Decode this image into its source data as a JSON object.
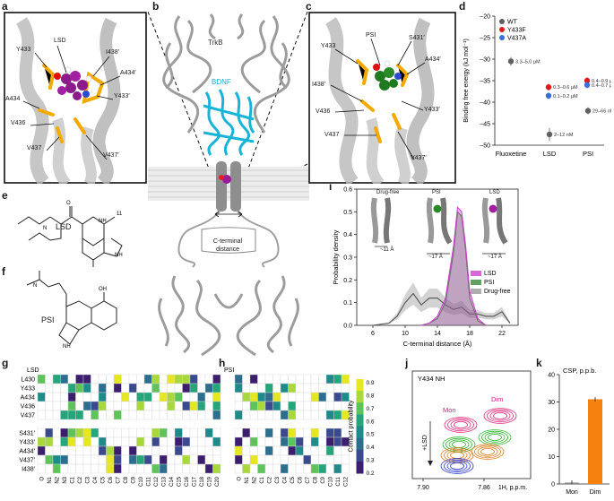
{
  "panels": {
    "a": {
      "label": "a",
      "residues": [
        "LSD",
        "Y433",
        "I438′",
        "A434′",
        "A434",
        "Y433′",
        "V436",
        "V437",
        "V437′"
      ]
    },
    "b": {
      "label": "b",
      "trkb": "TrkB",
      "bdnf": "BDNF",
      "distance_label": "C-terminal\ndistance"
    },
    "c": {
      "label": "c",
      "residues": [
        "PSI",
        "S431′",
        "Y433",
        "A434′",
        "I438′",
        "V436",
        "Y433′",
        "V437",
        "V437′"
      ]
    },
    "d": {
      "label": "d",
      "ylabel": "Binding free energy (kJ mol⁻¹)",
      "legend": [
        {
          "name": "WT",
          "color": "#606060"
        },
        {
          "name": "Y433F",
          "color": "#e31a1c"
        },
        {
          "name": "V437A",
          "color": "#3b6fd8"
        }
      ],
      "chart_data": {
        "type": "scatter",
        "categories": [
          "Fluoxetine",
          "LSD",
          "PSI"
        ],
        "ylim": [
          -50,
          -20
        ],
        "yticks": [
          -20,
          -25,
          -30,
          -35,
          -40,
          -45,
          -50
        ],
        "points": [
          {
            "category": "Fluoxetine",
            "series": "WT",
            "y": -30.5,
            "err": 1.0,
            "label": "3.3–5.0 μM"
          },
          {
            "category": "LSD",
            "series": "WT",
            "y": -47.5,
            "err": 1.5,
            "label": "2–12 nM"
          },
          {
            "category": "LSD",
            "series": "Y433F",
            "y": -36.5,
            "err": 0.8,
            "label": "0.3–0.6 μM"
          },
          {
            "category": "LSD",
            "series": "V437A",
            "y": -38.5,
            "err": 0.8,
            "label": "0.1–0.2 μM"
          },
          {
            "category": "PSI",
            "series": "WT",
            "y": -42.0,
            "err": 0.8,
            "label": "29–66 nM"
          },
          {
            "category": "PSI",
            "series": "Y433F",
            "y": -35.0,
            "err": 0.8,
            "label": "0.4–0.9 μM"
          },
          {
            "category": "PSI",
            "series": "V437A",
            "y": -36.0,
            "err": 0.8,
            "label": "0.4–0.7 μM"
          }
        ]
      }
    },
    "e": {
      "label": "e",
      "name": "LSD"
    },
    "f": {
      "label": "f",
      "name": "PSI"
    },
    "g": {
      "label": "g",
      "title": "LSD",
      "rows_top": [
        "L430",
        "Y433",
        "A434",
        "V436",
        "V437"
      ],
      "rows_bottom": [
        "S431′",
        "Y433′",
        "A434′",
        "V437′",
        "I438′"
      ],
      "cols": [
        "O",
        "N1",
        "N2",
        "N3",
        "C1",
        "C2",
        "C3",
        "C4",
        "C5",
        "C6",
        "C7",
        "C8",
        "C9",
        "C10",
        "C11",
        "C12",
        "C13",
        "C14",
        "C15",
        "C16",
        "C17",
        "C18",
        "C19",
        "C20"
      ]
    },
    "h": {
      "label": "h",
      "title": "PSI",
      "cols": [
        "O",
        "N1",
        "N2",
        "C1",
        "C2",
        "C3",
        "C4",
        "C5",
        "C6",
        "C7",
        "C8",
        "C9",
        "C10",
        "C11",
        "C12"
      ],
      "colorbar_label": "Contact probability",
      "colorbar_ticks": [
        "0.9",
        "0.8",
        "0.7",
        "0.6",
        "0.5",
        "0.4",
        "0.3",
        "0.2"
      ]
    },
    "i": {
      "label": "i",
      "xlabel": "C-terminal distance (Å)",
      "ylabel": "Probability density",
      "insets": [
        {
          "title": "Drug-free",
          "dist": "~11 Å"
        },
        {
          "title": "PSI",
          "dist": "~17 Å"
        },
        {
          "title": "LSD",
          "dist": "~17 Å"
        }
      ],
      "chart_data": {
        "type": "line",
        "xlim": [
          4,
          24
        ],
        "ylim": [
          0,
          0.6
        ],
        "xticks": [
          6,
          10,
          14,
          18,
          22
        ],
        "yticks": [
          0,
          0.1,
          0.2,
          0.3,
          0.4,
          0.5,
          0.6
        ],
        "series": [
          {
            "name": "LSD",
            "color": "#cc44cc",
            "x": [
              12,
              13,
              14,
              15,
              16,
              16.5,
              17,
              17.5,
              18,
              19,
              20
            ],
            "y": [
              0,
              0.01,
              0.04,
              0.12,
              0.35,
              0.52,
              0.5,
              0.35,
              0.15,
              0.03,
              0
            ]
          },
          {
            "name": "PSI",
            "color": "#3a8a3a",
            "x": [
              12,
              13,
              14,
              15,
              16,
              16.5,
              17,
              17.5,
              18,
              19,
              20
            ],
            "y": [
              0,
              0.01,
              0.03,
              0.1,
              0.32,
              0.5,
              0.48,
              0.33,
              0.12,
              0.02,
              0
            ]
          },
          {
            "name": "Drug-free",
            "color": "#9a9a9a",
            "x": [
              6,
              8,
              9,
              10,
              11,
              12,
              13,
              14,
              15,
              16,
              17,
              18,
              19,
              20,
              21,
              22,
              23
            ],
            "y": [
              0,
              0.01,
              0.04,
              0.1,
              0.14,
              0.09,
              0.12,
              0.12,
              0.09,
              0.07,
              0.08,
              0.05,
              0.05,
              0.04,
              0.04,
              0.06,
              0.01
            ]
          }
        ]
      }
    },
    "j": {
      "label": "j",
      "title": "Y434 NH",
      "mon": "Mon",
      "dim": "Dim",
      "arrow": "+LSD",
      "xticks": [
        "7.90",
        "7.86"
      ],
      "xlabel": "1H, p.p.m."
    },
    "k": {
      "label": "k",
      "ylabel": "CSP, p.p.b.",
      "chart_data": {
        "type": "bar",
        "categories": [
          "Mon",
          "Dim"
        ],
        "values": [
          0.5,
          31
        ],
        "ylim": [
          0,
          40
        ],
        "yticks": [
          0,
          10,
          20,
          30,
          40
        ],
        "colors": [
          "#8a8a8a",
          "#f5820f"
        ]
      }
    }
  }
}
